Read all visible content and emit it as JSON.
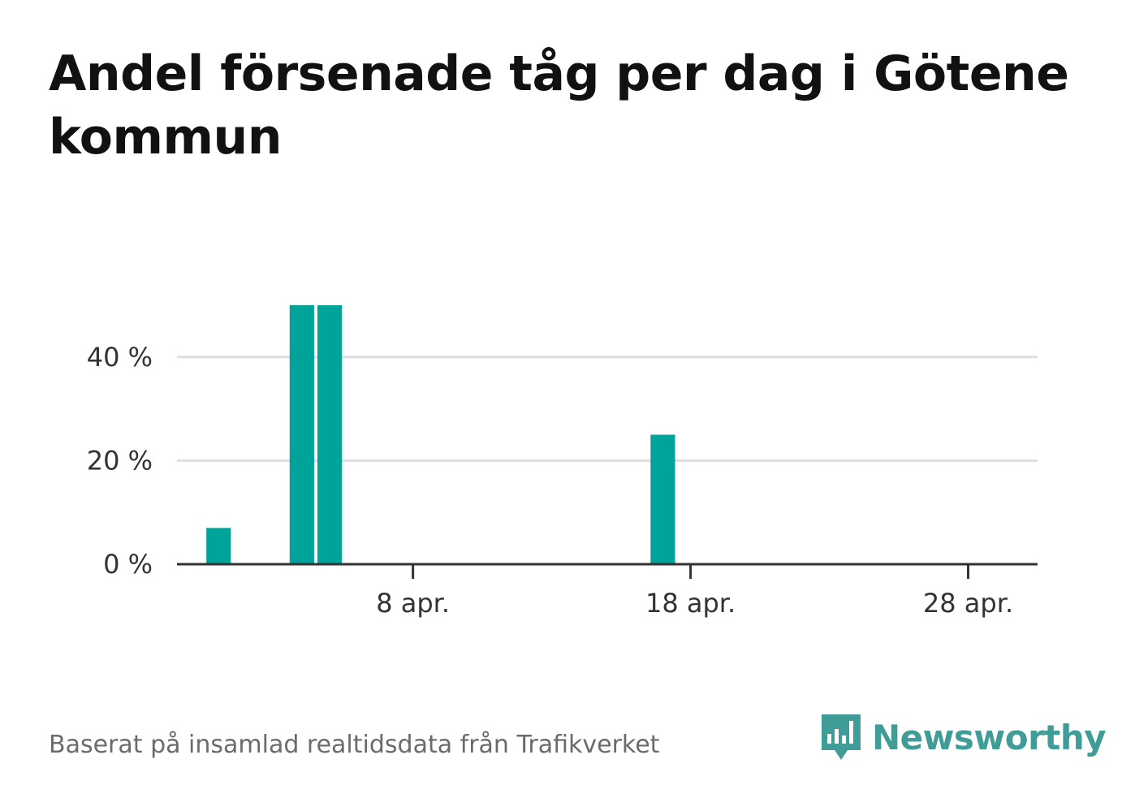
{
  "title": "Andel försenade tåg per dag i Götene kommun",
  "source": "Baserat på insamlad realtidsdata från Trafikverket",
  "brand": {
    "name": "Newsworthy",
    "icon": "bar-chart-speech-bubble-icon",
    "color": "#3f9c96"
  },
  "chart_data": {
    "type": "bar",
    "x_unit": "date",
    "x": [
      "2024-04-01",
      "2024-04-04",
      "2024-04-05",
      "2024-04-17"
    ],
    "values": [
      7,
      50,
      50,
      25
    ],
    "x_range": [
      "2024-03-31",
      "2024-05-01"
    ],
    "ylim": [
      0,
      50
    ],
    "y_ticks": [
      0,
      20,
      40
    ],
    "y_tick_labels": [
      "0 %",
      "20 %",
      "40 %"
    ],
    "x_ticks": [
      "2024-04-08",
      "2024-04-18",
      "2024-04-28"
    ],
    "x_tick_labels": [
      "8 apr.",
      "18 apr.",
      "28 apr."
    ],
    "xlabel": "",
    "ylabel": "",
    "grid": true,
    "bar_color": "#00a39a"
  }
}
